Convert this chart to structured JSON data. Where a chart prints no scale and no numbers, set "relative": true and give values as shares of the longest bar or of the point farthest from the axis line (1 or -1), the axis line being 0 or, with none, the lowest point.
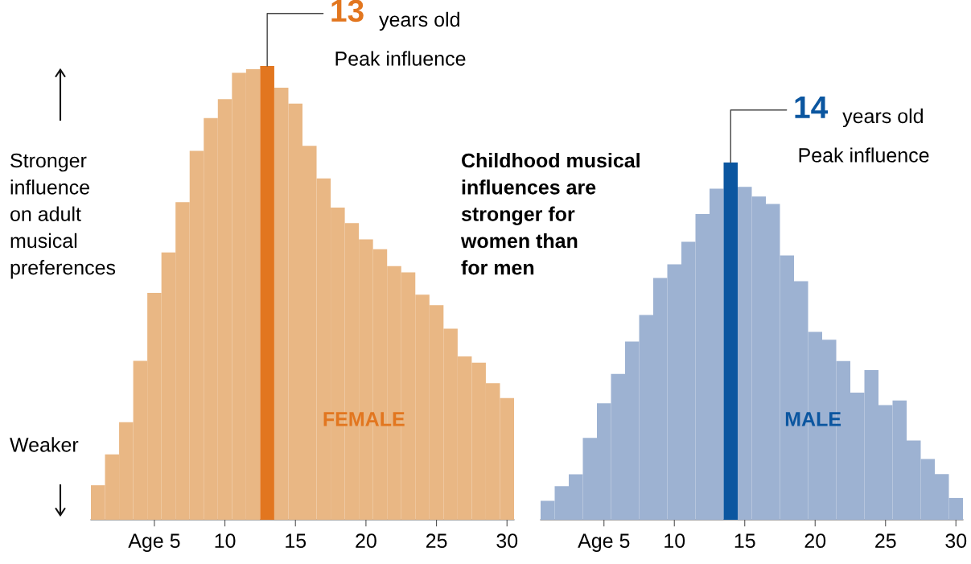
{
  "chart_data": [
    {
      "type": "bar",
      "relative": true,
      "ylabel": "Stronger\ninfluence\non adult\nmusical\npreferences",
      "x": [
        1,
        2,
        3,
        4,
        5,
        6,
        7,
        8,
        9,
        10,
        11,
        12,
        13,
        14,
        15,
        16,
        17,
        18,
        19,
        20,
        21,
        22,
        23,
        24,
        25,
        26,
        27,
        28,
        29,
        30
      ],
      "xlim": [
        0.5,
        30.5
      ],
      "xticks": [
        {
          "value": 5,
          "label": "Age 5"
        },
        10,
        15,
        20,
        25,
        30
      ],
      "tick_labels": "x",
      "grid": false,
      "series": [
        {
          "name": "FEMALE",
          "colors": [
            "#e9b784",
            "#e9b784",
            "#e9b784",
            "#e9b784",
            "#e9b784",
            "#e9b784",
            "#e9b784",
            "#e9b784",
            "#e9b784",
            "#e9b784",
            "#e9b784",
            "#e9b784",
            "#e2761f",
            "#e9b784",
            "#e9b784",
            "#e9b784",
            "#e9b784",
            "#e9b784",
            "#e9b784",
            "#e9b784",
            "#e9b784",
            "#e9b784",
            "#e9b784",
            "#e9b784",
            "#e9b784",
            "#e9b784",
            "#e9b784",
            "#e9b784",
            "#e9b784",
            "#e9b784"
          ],
          "values": [
            0.076,
            0.144,
            0.215,
            0.35,
            0.5,
            0.589,
            0.7,
            0.813,
            0.885,
            0.927,
            0.985,
            0.993,
            1,
            0.952,
            0.917,
            0.824,
            0.752,
            0.688,
            0.654,
            0.618,
            0.596,
            0.559,
            0.545,
            0.496,
            0.473,
            0.421,
            0.36,
            0.346,
            0.301,
            0.268
          ]
        }
      ],
      "annotations": [
        {
          "text": "13",
          "x": 13,
          "y": 1
        },
        "years old",
        "Peak influence",
        "Weaker"
      ]
    },
    {
      "type": "bar",
      "relative": true,
      "x": [
        1,
        2,
        3,
        4,
        5,
        6,
        7,
        8,
        9,
        10,
        11,
        12,
        13,
        14,
        15,
        16,
        17,
        18,
        19,
        20,
        21,
        22,
        23,
        24,
        25,
        26,
        27,
        28,
        29,
        30
      ],
      "xlim": [
        0.5,
        30.5
      ],
      "xticks": [
        {
          "value": 5,
          "label": "Age 5"
        },
        10,
        15,
        20,
        25,
        30
      ],
      "tick_labels": "x",
      "grid": false,
      "series": [
        {
          "name": "MALE",
          "colors": [
            "#9db2d2",
            "#9db2d2",
            "#9db2d2",
            "#9db2d2",
            "#9db2d2",
            "#9db2d2",
            "#9db2d2",
            "#9db2d2",
            "#9db2d2",
            "#9db2d2",
            "#9db2d2",
            "#9db2d2",
            "#9db2d2",
            "#0b56a0",
            "#9db2d2",
            "#9db2d2",
            "#9db2d2",
            "#9db2d2",
            "#9db2d2",
            "#9db2d2",
            "#9db2d2",
            "#9db2d2",
            "#9db2d2",
            "#9db2d2",
            "#9db2d2",
            "#9db2d2",
            "#9db2d2",
            "#9db2d2",
            "#9db2d2",
            "#9db2d2"
          ],
          "values": [
            0.053,
            0.094,
            0.127,
            0.229,
            0.326,
            0.408,
            0.499,
            0.573,
            0.677,
            0.715,
            0.778,
            0.856,
            0.927,
            1,
            0.932,
            0.905,
            0.884,
            0.74,
            0.668,
            0.526,
            0.504,
            0.444,
            0.356,
            0.419,
            0.321,
            0.334,
            0.222,
            0.17,
            0.128,
            0.061
          ]
        }
      ],
      "annotations": [
        {
          "text": "14",
          "x": 14,
          "y": 1
        },
        "years old",
        "Peak influence",
        "Childhood musical\ninfluences are\nstronger for\nwomen than\nfor men"
      ]
    }
  ]
}
